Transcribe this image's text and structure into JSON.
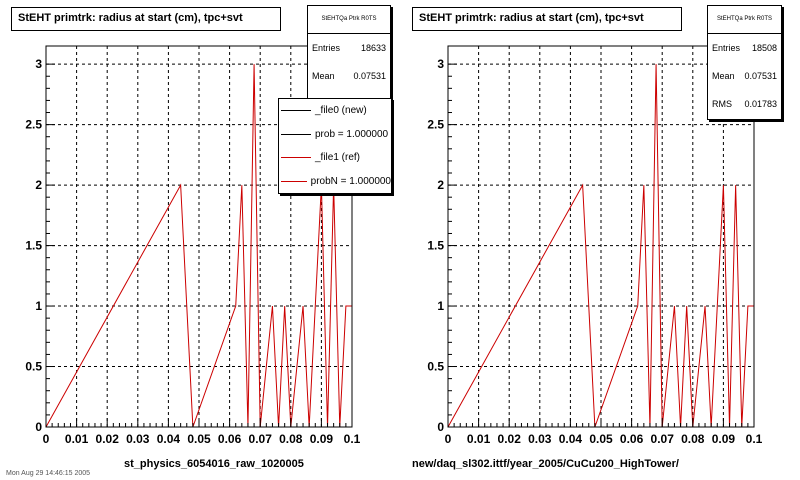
{
  "colors": {
    "new_line": "#000000",
    "ref_line": "#cc0000",
    "grid": "#000000"
  },
  "left_panel": {
    "title": "StEHT primtrk: radius at start (cm), tpc+svt",
    "stats": {
      "title": "StEHTQa Ptrk R0TS",
      "entries_label": "Entries",
      "entries_value": "18633",
      "mean_label": "Mean",
      "mean_value": "0.07531"
    },
    "legend": [
      {
        "label": "_file0 (new)",
        "color": "#000000"
      },
      {
        "label": "prob = 1.000000",
        "color": "#000000"
      },
      {
        "label": "_file1 (ref)",
        "color": "#cc0000"
      },
      {
        "label": "probN = 1.000000",
        "color": "#cc0000"
      }
    ],
    "bottom_label": "st_physics_6054016_raw_1020005"
  },
  "right_panel": {
    "title": "StEHT primtrk: radius at start (cm), tpc+svt",
    "stats": {
      "title": "StEHTQa Ptrk R0TS",
      "entries_label": "Entries",
      "entries_value": "18508",
      "mean_label": "Mean",
      "mean_value": "0.07531",
      "rms_label": "RMS",
      "rms_value": "0.01783"
    },
    "bottom_label": "new/daq_sl302.ittf/year_2005/CuCu200_HighTower/"
  },
  "footer_text": "Mon Aug 29 14:46:15 2005",
  "chart_data": [
    {
      "type": "step-histogram",
      "title": "StEHT primtrk: radius at start (cm), tpc+svt",
      "xlabel": "st_physics_6054016_raw_1020005",
      "xlim": [
        0,
        0.1
      ],
      "ylim": [
        0,
        3.15
      ],
      "grid": true,
      "x_ticks": [
        "0",
        "0.01",
        "0.02",
        "0.03",
        "0.04",
        "0.05",
        "0.06",
        "0.07",
        "0.08",
        "0.09",
        "0.1"
      ],
      "y_ticks": [
        "0",
        "0.5",
        "1",
        "1.5",
        "2",
        "2.5",
        "3"
      ],
      "bin_width": 0.002,
      "series": [
        {
          "name": "_file1 (ref)",
          "color": "#cc0000",
          "bins": [
            {
              "x0": 0.044,
              "value": 2
            },
            {
              "x0": 0.046,
              "value": 1
            },
            {
              "x0": 0.062,
              "value": 1
            },
            {
              "x0": 0.064,
              "value": 2
            },
            {
              "x0": 0.068,
              "value": 3
            },
            {
              "x0": 0.074,
              "value": 1
            },
            {
              "x0": 0.078,
              "value": 1
            },
            {
              "x0": 0.084,
              "value": 1
            },
            {
              "x0": 0.088,
              "value": 1
            },
            {
              "x0": 0.09,
              "value": 2
            },
            {
              "x0": 0.094,
              "value": 2
            },
            {
              "x0": 0.098,
              "value": 1
            }
          ]
        }
      ]
    },
    {
      "type": "step-histogram",
      "title": "StEHT primtrk: radius at start (cm), tpc+svt",
      "xlabel": "new/daq_sl302.ittf/year_2005/CuCu200_HighTower/",
      "xlim": [
        0,
        0.1
      ],
      "ylim": [
        0,
        3.15
      ],
      "grid": true,
      "x_ticks": [
        "0",
        "0.01",
        "0.02",
        "0.03",
        "0.04",
        "0.05",
        "0.06",
        "0.07",
        "0.08",
        "0.09",
        "0.1"
      ],
      "y_ticks": [
        "0",
        "0.5",
        "1",
        "1.5",
        "2",
        "2.5",
        "3"
      ],
      "bin_width": 0.002,
      "series": [
        {
          "name": "_file1 (ref)",
          "color": "#cc0000",
          "bins": [
            {
              "x0": 0.044,
              "value": 2
            },
            {
              "x0": 0.046,
              "value": 1
            },
            {
              "x0": 0.062,
              "value": 1
            },
            {
              "x0": 0.064,
              "value": 2
            },
            {
              "x0": 0.068,
              "value": 3
            },
            {
              "x0": 0.074,
              "value": 1
            },
            {
              "x0": 0.078,
              "value": 1
            },
            {
              "x0": 0.084,
              "value": 1
            },
            {
              "x0": 0.088,
              "value": 1
            },
            {
              "x0": 0.09,
              "value": 2
            },
            {
              "x0": 0.094,
              "value": 2
            },
            {
              "x0": 0.098,
              "value": 1
            }
          ]
        }
      ]
    }
  ]
}
